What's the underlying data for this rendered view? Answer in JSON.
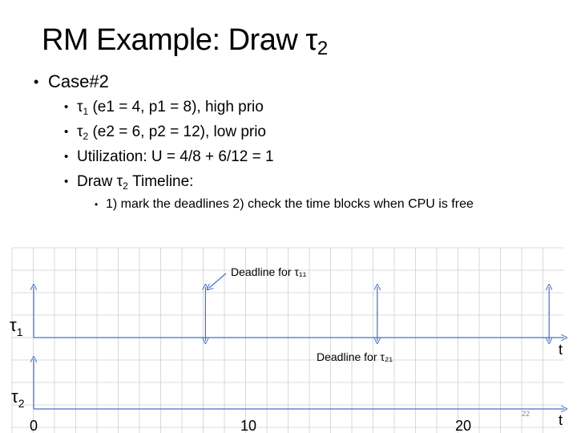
{
  "slide": {
    "title_prefix": "RM Example: Draw  τ",
    "title_sub": "2",
    "slide_number": "22"
  },
  "bullets": {
    "case": "Case#2",
    "t1_sym": "τ",
    "t1_sub": "1",
    "t1_text": " (e1 = 4, p1 = 8), high prio",
    "t2_sym": "τ",
    "t2_sub": "2",
    "t2_text": " (e2 = 6, p2 = 12), low prio",
    "utilization": "Utilization: U = 4/8 + 6/12 = 1",
    "draw_prefix": "Draw τ",
    "draw_sub": "2",
    "draw_suffix": "  Timeline:",
    "steps": "1) mark the deadlines 2) check the time blocks when CPU is free"
  },
  "timeline": {
    "row1_label_sym": "τ",
    "row1_label_sub": "1",
    "row2_label_sym": "τ",
    "row2_label_sub": "2",
    "axis_label": "t",
    "tick_labels": [
      {
        "value": 0,
        "text": "0"
      },
      {
        "value": 10,
        "text": "10"
      },
      {
        "value": 20,
        "text": "20"
      }
    ],
    "deadline_t1_label": "Deadline for τ₁₁",
    "deadline_t2_label": "Deadline for τ₂₁",
    "t1_period": 8,
    "t1_deadlines": [
      0,
      8,
      16,
      24
    ],
    "t2_arrivals": [
      0
    ],
    "colors": {
      "grid": "#cfcfcf",
      "axis": "#4472c4",
      "arrow": "#4472c4"
    }
  }
}
